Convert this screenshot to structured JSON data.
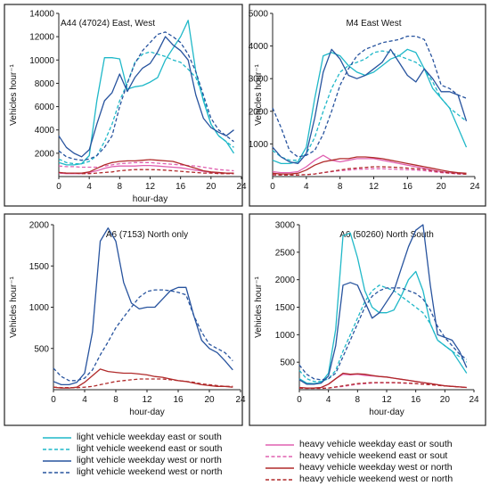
{
  "colors": {
    "light_weekday_es": "#1fb8c8",
    "light_weekend_es": "#1fb8c8",
    "light_weekday_wn": "#27539e",
    "light_weekend_wn": "#27539e",
    "heavy_weekday_es": "#e060b0",
    "heavy_weekend_es": "#e060b0",
    "heavy_weekday_wn": "#b02a2a",
    "heavy_weekend_wn": "#b02a2a"
  },
  "legend": {
    "left": [
      {
        "key": "lwes",
        "label": "light vehicle weekday east or south",
        "color": "#1fb8c8",
        "dash": false
      },
      {
        "key": "lwees",
        "label": "light vehicle weekend east or south",
        "color": "#1fb8c8",
        "dash": true
      },
      {
        "key": "lwwn",
        "label": "light vehicle weekday west or north",
        "color": "#27539e",
        "dash": false
      },
      {
        "key": "lwewn",
        "label": "light vehicle weekend west or north",
        "color": "#27539e",
        "dash": true
      }
    ],
    "right": [
      {
        "key": "hwes",
        "label": "heavy vehicle weekday east or south",
        "color": "#e060b0",
        "dash": false
      },
      {
        "key": "hwees",
        "label": "heavy vehicle weekend east or sout",
        "color": "#e060b0",
        "dash": true
      },
      {
        "key": "hwwn",
        "label": "heavy vehicle weekday west or north",
        "color": "#b02a2a",
        "dash": false
      },
      {
        "key": "hwewn",
        "label": "heavy vehicle weekend west or north",
        "color": "#b02a2a",
        "dash": true
      }
    ]
  },
  "chart_data": [
    {
      "type": "line",
      "title": "A44 (47024)  East, West",
      "xlabel": "hour-day",
      "ylabel": "Vehicles hour⁻¹",
      "xlim": [
        0,
        24
      ],
      "ylim": [
        0,
        14000
      ],
      "xticks": [
        0,
        4,
        8,
        12,
        16,
        20,
        24
      ],
      "yticks": [
        2000,
        4000,
        6000,
        8000,
        10000,
        12000,
        14000
      ],
      "x": [
        0,
        1,
        2,
        3,
        4,
        5,
        6,
        7,
        8,
        9,
        10,
        11,
        12,
        13,
        14,
        15,
        16,
        17,
        18,
        19,
        20,
        21,
        22,
        23
      ],
      "series": [
        {
          "key": "lwes",
          "values": [
            1200,
            1000,
            1000,
            1100,
            1800,
            6500,
            10200,
            10200,
            10100,
            7500,
            7700,
            7800,
            8100,
            8500,
            10000,
            11000,
            12000,
            13400,
            9000,
            6500,
            4500,
            3500,
            3000,
            2000
          ]
        },
        {
          "key": "lwees",
          "values": [
            1500,
            1200,
            1100,
            1100,
            1300,
            1800,
            3000,
            4500,
            6500,
            8000,
            9800,
            10500,
            10700,
            10500,
            10300,
            10000,
            9800,
            9200,
            8500,
            6800,
            4500,
            3500,
            3000,
            2500
          ]
        },
        {
          "key": "lwwn",
          "values": [
            3500,
            2500,
            2000,
            1700,
            2300,
            4500,
            6500,
            7200,
            8800,
            7300,
            8500,
            9300,
            9700,
            10700,
            12000,
            11300,
            10800,
            10000,
            7000,
            5000,
            4200,
            3800,
            3500,
            4000
          ]
        },
        {
          "key": "lwewn",
          "values": [
            2200,
            1700,
            1500,
            1400,
            1500,
            1800,
            2500,
            3500,
            6000,
            8000,
            9700,
            10800,
            11500,
            12200,
            12400,
            12000,
            11500,
            10500,
            9000,
            7000,
            5000,
            4000,
            3500,
            3000
          ]
        },
        {
          "key": "hwes",
          "values": [
            300,
            250,
            250,
            250,
            350,
            500,
            700,
            850,
            900,
            900,
            900,
            950,
            950,
            900,
            850,
            800,
            750,
            650,
            550,
            450,
            350,
            300,
            300,
            250
          ]
        },
        {
          "key": "hwees",
          "values": [
            900,
            850,
            850,
            800,
            800,
            800,
            900,
            1000,
            1100,
            1150,
            1200,
            1200,
            1200,
            1150,
            1100,
            1050,
            1000,
            950,
            900,
            800,
            700,
            600,
            550,
            500
          ]
        },
        {
          "key": "hwwn",
          "values": [
            350,
            300,
            300,
            300,
            400,
            700,
            1000,
            1200,
            1300,
            1350,
            1350,
            1400,
            1450,
            1400,
            1350,
            1300,
            1100,
            900,
            700,
            500,
            400,
            350,
            300,
            300
          ]
        },
        {
          "key": "hwewn",
          "values": [
            350,
            300,
            300,
            250,
            250,
            300,
            350,
            400,
            500,
            550,
            600,
            600,
            600,
            580,
            550,
            500,
            450,
            400,
            350,
            300,
            300,
            250,
            250,
            250
          ]
        }
      ]
    },
    {
      "type": "line",
      "title": "M4 East West",
      "xlabel": "",
      "ylabel": "Vehicles hour⁻¹",
      "xlim": [
        0,
        24
      ],
      "ylim": [
        0,
        5000
      ],
      "xticks": [
        0,
        4,
        8,
        12,
        16,
        20,
        24
      ],
      "yticks": [
        1000,
        2000,
        3000,
        4000,
        5000
      ],
      "x": [
        0,
        1,
        2,
        3,
        4,
        5,
        6,
        7,
        8,
        9,
        10,
        11,
        12,
        13,
        14,
        15,
        16,
        17,
        18,
        19,
        20,
        21,
        22,
        23
      ],
      "series": [
        {
          "key": "lwes",
          "values": [
            500,
            400,
            400,
            450,
            900,
            2400,
            3700,
            3800,
            3700,
            3400,
            3200,
            3100,
            3200,
            3400,
            3600,
            3700,
            3900,
            3800,
            3300,
            2700,
            2400,
            2100,
            1500,
            900
          ]
        },
        {
          "key": "lwees",
          "values": [
            800,
            600,
            500,
            500,
            700,
            1200,
            2000,
            2700,
            3200,
            3400,
            3500,
            3600,
            3800,
            3850,
            3800,
            3700,
            3600,
            3500,
            3300,
            2900,
            2400,
            2100,
            1900,
            1700
          ]
        },
        {
          "key": "lwwn",
          "values": [
            900,
            600,
            450,
            400,
            700,
            1800,
            3200,
            3900,
            3600,
            3100,
            3000,
            3100,
            3300,
            3500,
            3900,
            3500,
            3100,
            2900,
            3300,
            3000,
            2600,
            2600,
            2500,
            1700
          ]
        },
        {
          "key": "lwewn",
          "values": [
            2100,
            1500,
            800,
            600,
            650,
            800,
            1300,
            2000,
            2800,
            3300,
            3700,
            3900,
            4000,
            4100,
            4150,
            4200,
            4300,
            4300,
            4200,
            3600,
            2800,
            2700,
            2500,
            2400
          ]
        },
        {
          "key": "hwes",
          "values": [
            150,
            120,
            120,
            150,
            300,
            500,
            650,
            500,
            450,
            500,
            550,
            550,
            550,
            500,
            450,
            400,
            350,
            300,
            250,
            200,
            150,
            120,
            100,
            80
          ]
        },
        {
          "key": "hwees",
          "values": [
            50,
            50,
            50,
            50,
            60,
            80,
            120,
            150,
            180,
            200,
            220,
            230,
            240,
            240,
            230,
            220,
            210,
            200,
            180,
            150,
            120,
            100,
            80,
            70
          ]
        },
        {
          "key": "hwwn",
          "values": [
            100,
            80,
            80,
            100,
            200,
            350,
            450,
            500,
            550,
            550,
            600,
            600,
            580,
            550,
            500,
            450,
            400,
            350,
            300,
            250,
            200,
            150,
            120,
            100
          ]
        },
        {
          "key": "hwewn",
          "values": [
            60,
            50,
            50,
            50,
            60,
            80,
            120,
            160,
            200,
            240,
            260,
            280,
            300,
            300,
            290,
            280,
            260,
            240,
            220,
            180,
            140,
            110,
            90,
            70
          ]
        }
      ]
    },
    {
      "type": "line",
      "title": "A6 (7153) North only",
      "xlabel": "hour-day",
      "ylabel": "Vehicles hour⁻¹",
      "xlim": [
        0,
        24
      ],
      "ylim": [
        0,
        2000
      ],
      "xticks": [
        0,
        4,
        8,
        12,
        16,
        20,
        24
      ],
      "yticks": [
        500,
        1000,
        1500,
        2000
      ],
      "x": [
        0,
        1,
        2,
        3,
        4,
        5,
        6,
        7,
        8,
        9,
        10,
        11,
        12,
        13,
        14,
        15,
        16,
        17,
        18,
        19,
        20,
        21,
        22,
        23
      ],
      "series": [
        {
          "key": "lwwn",
          "values": [
            100,
            60,
            60,
            90,
            200,
            700,
            1800,
            1960,
            1800,
            1300,
            1050,
            980,
            1000,
            1000,
            1100,
            1200,
            1240,
            1240,
            900,
            600,
            500,
            450,
            350,
            240
          ]
        },
        {
          "key": "lwewn",
          "values": [
            260,
            160,
            110,
            110,
            140,
            240,
            420,
            580,
            750,
            880,
            1000,
            1120,
            1190,
            1210,
            1210,
            1200,
            1180,
            1150,
            900,
            700,
            550,
            500,
            450,
            350
          ]
        },
        {
          "key": "hwwn",
          "values": [
            30,
            20,
            20,
            30,
            90,
            170,
            250,
            220,
            210,
            200,
            200,
            190,
            180,
            160,
            150,
            130,
            110,
            100,
            80,
            60,
            50,
            40,
            40,
            30
          ]
        },
        {
          "key": "hwewn",
          "values": [
            30,
            25,
            25,
            25,
            30,
            40,
            60,
            80,
            100,
            110,
            120,
            130,
            130,
            130,
            130,
            120,
            110,
            100,
            90,
            70,
            60,
            50,
            40,
            40
          ]
        }
      ]
    },
    {
      "type": "line",
      "title": "A6 (50260) North South",
      "xlabel": "hour-day",
      "ylabel": "Vehicles hour⁻¹",
      "xlim": [
        0,
        24
      ],
      "ylim": [
        0,
        3000
      ],
      "xticks": [
        0,
        4,
        8,
        12,
        16,
        20,
        24
      ],
      "yticks": [
        500,
        1000,
        1500,
        2000,
        2500,
        3000
      ],
      "x": [
        0,
        1,
        2,
        3,
        4,
        5,
        6,
        7,
        8,
        9,
        10,
        11,
        12,
        13,
        14,
        15,
        16,
        17,
        18,
        19,
        20,
        21,
        22,
        23
      ],
      "series": [
        {
          "key": "lwes",
          "values": [
            200,
            120,
            110,
            130,
            300,
            1100,
            2800,
            2850,
            2400,
            1800,
            1500,
            1400,
            1400,
            1450,
            1700,
            2000,
            2150,
            1800,
            1200,
            900,
            800,
            700,
            500,
            300
          ]
        },
        {
          "key": "lwees",
          "values": [
            350,
            200,
            150,
            150,
            200,
            350,
            700,
            1000,
            1300,
            1600,
            1800,
            1900,
            1850,
            1800,
            1700,
            1600,
            1500,
            1400,
            1200,
            900,
            800,
            700,
            600,
            500
          ]
        },
        {
          "key": "lwwn",
          "values": [
            180,
            100,
            100,
            120,
            250,
            800,
            1900,
            1950,
            1900,
            1600,
            1300,
            1400,
            1600,
            1800,
            2200,
            2600,
            2900,
            3000,
            1900,
            1000,
            950,
            900,
            700,
            400
          ]
        },
        {
          "key": "lwewn",
          "values": [
            450,
            280,
            200,
            180,
            200,
            300,
            600,
            900,
            1200,
            1500,
            1700,
            1800,
            1850,
            1850,
            1850,
            1800,
            1750,
            1650,
            1450,
            1150,
            950,
            800,
            650,
            550
          ]
        },
        {
          "key": "hwes",
          "values": [
            40,
            30,
            30,
            40,
            100,
            200,
            280,
            270,
            280,
            260,
            250,
            240,
            230,
            210,
            190,
            170,
            150,
            130,
            110,
            90,
            70,
            60,
            50,
            40
          ]
        },
        {
          "key": "hwees",
          "values": [
            30,
            25,
            25,
            25,
            30,
            45,
            60,
            80,
            100,
            110,
            120,
            125,
            125,
            125,
            120,
            115,
            110,
            100,
            90,
            80,
            70,
            60,
            50,
            40
          ]
        },
        {
          "key": "hwwn",
          "values": [
            40,
            30,
            30,
            40,
            100,
            200,
            300,
            280,
            290,
            280,
            260,
            240,
            230,
            210,
            190,
            170,
            150,
            130,
            110,
            90,
            70,
            60,
            50,
            40
          ]
        },
        {
          "key": "hwewn",
          "values": [
            30,
            25,
            25,
            25,
            30,
            50,
            70,
            90,
            110,
            120,
            130,
            130,
            130,
            130,
            125,
            120,
            110,
            100,
            90,
            80,
            70,
            60,
            50,
            40
          ]
        }
      ]
    }
  ]
}
